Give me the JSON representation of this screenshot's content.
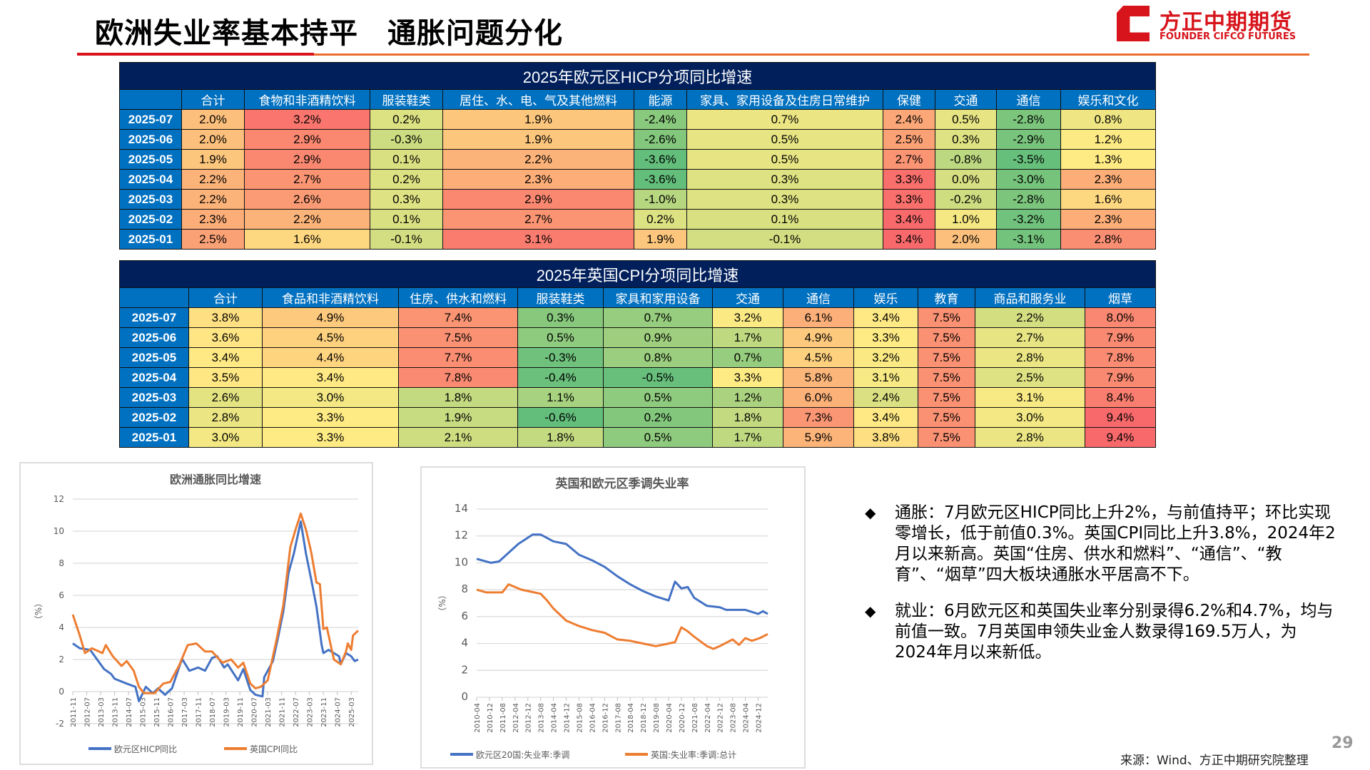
{
  "header": {
    "title": "欧洲失业率基本持平　通胀问题分化",
    "logo_cn": "方正中期期货",
    "logo_en": "FOUNDER CIFCO FUTURES",
    "colors": {
      "red": "#d7141c",
      "orange": "#ed6b2c"
    }
  },
  "hicp_table": {
    "title": "2025年欧元区HICP分项同比增速",
    "columns": [
      "",
      "合计",
      "食物和非酒精饮料",
      "服装鞋类",
      "居住、水、电、气及其他燃料",
      "能源",
      "家具、家用设备及住房日常维护",
      "保健",
      "交通",
      "通信",
      "娱乐和文化"
    ],
    "rows": [
      {
        "label": "2025-07",
        "values": [
          "2.0%",
          "3.2%",
          "0.2%",
          "1.9%",
          "-2.4%",
          "0.7%",
          "2.4%",
          "0.5%",
          "-2.8%",
          "0.8%"
        ]
      },
      {
        "label": "2025-06",
        "values": [
          "2.0%",
          "2.9%",
          "-0.3%",
          "1.9%",
          "-2.6%",
          "0.5%",
          "2.5%",
          "0.3%",
          "-2.9%",
          "1.2%"
        ]
      },
      {
        "label": "2025-05",
        "values": [
          "1.9%",
          "2.9%",
          "0.1%",
          "2.2%",
          "-3.6%",
          "0.5%",
          "2.7%",
          "-0.8%",
          "-3.5%",
          "1.3%"
        ]
      },
      {
        "label": "2025-04",
        "values": [
          "2.2%",
          "2.7%",
          "0.2%",
          "2.3%",
          "-3.6%",
          "0.3%",
          "3.3%",
          "0.0%",
          "-3.0%",
          "2.3%"
        ]
      },
      {
        "label": "2025-03",
        "values": [
          "2.2%",
          "2.6%",
          "0.3%",
          "2.9%",
          "-1.0%",
          "0.3%",
          "3.3%",
          "-0.2%",
          "-2.8%",
          "1.6%"
        ]
      },
      {
        "label": "2025-02",
        "values": [
          "2.3%",
          "2.2%",
          "0.1%",
          "2.7%",
          "0.2%",
          "0.1%",
          "3.4%",
          "1.0%",
          "-3.2%",
          "2.3%"
        ]
      },
      {
        "label": "2025-01",
        "values": [
          "2.5%",
          "1.6%",
          "-0.1%",
          "3.1%",
          "1.9%",
          "-0.1%",
          "3.4%",
          "2.0%",
          "-3.1%",
          "2.8%"
        ]
      }
    ]
  },
  "uk_table": {
    "title": "2025年英国CPI分项同比增速",
    "columns": [
      "",
      "合计",
      "食品和非酒精饮料",
      "住房、供水和燃料",
      "服装鞋类",
      "家具和家用设备",
      "交通",
      "通信",
      "娱乐",
      "教育",
      "商品和服务业",
      "烟草"
    ],
    "rows": [
      {
        "label": "2025-07",
        "values": [
          "3.8%",
          "4.9%",
          "7.4%",
          "0.3%",
          "0.7%",
          "3.2%",
          "6.1%",
          "3.4%",
          "7.5%",
          "2.2%",
          "8.0%"
        ]
      },
      {
        "label": "2025-06",
        "values": [
          "3.6%",
          "4.5%",
          "7.5%",
          "0.5%",
          "0.9%",
          "1.7%",
          "4.9%",
          "3.3%",
          "7.5%",
          "2.7%",
          "7.9%"
        ]
      },
      {
        "label": "2025-05",
        "values": [
          "3.4%",
          "4.4%",
          "7.7%",
          "-0.3%",
          "0.8%",
          "0.7%",
          "4.5%",
          "3.2%",
          "7.5%",
          "2.8%",
          "7.8%"
        ]
      },
      {
        "label": "2025-04",
        "values": [
          "3.5%",
          "3.4%",
          "7.8%",
          "-0.4%",
          "-0.5%",
          "3.3%",
          "5.8%",
          "3.1%",
          "7.5%",
          "2.5%",
          "7.9%"
        ]
      },
      {
        "label": "2025-03",
        "values": [
          "2.6%",
          "3.0%",
          "1.8%",
          "1.1%",
          "0.5%",
          "1.2%",
          "6.0%",
          "2.4%",
          "7.5%",
          "3.1%",
          "8.4%"
        ]
      },
      {
        "label": "2025-02",
        "values": [
          "2.8%",
          "3.3%",
          "1.9%",
          "-0.6%",
          "0.2%",
          "1.8%",
          "7.3%",
          "3.4%",
          "7.5%",
          "3.0%",
          "9.4%"
        ]
      },
      {
        "label": "2025-01",
        "values": [
          "3.0%",
          "3.3%",
          "2.1%",
          "1.8%",
          "0.5%",
          "1.7%",
          "5.9%",
          "3.8%",
          "7.5%",
          "2.8%",
          "9.4%"
        ]
      }
    ]
  },
  "heat_colors": {
    "low": "#63BE7B",
    "mid": "#FFEB84",
    "high": "#F8696B"
  },
  "chart_data": [
    {
      "type": "line",
      "title": "欧洲通胀同比增速",
      "ylabel": "（%）",
      "ylim": [
        -2,
        12
      ],
      "yticks": [
        -2,
        0,
        2,
        4,
        6,
        8,
        10,
        12
      ],
      "grid": true,
      "legend": "bottom",
      "xrange": [
        "2011-11",
        "2025-07"
      ],
      "xticks": [
        "2011-11",
        "2012-07",
        "2013-03",
        "2013-11",
        "2014-07",
        "2015-03",
        "2015-11",
        "2016-07",
        "2017-03",
        "2017-11",
        "2018-07",
        "2019-03",
        "2019-11",
        "2020-07",
        "2021-03",
        "2021-11",
        "2022-07",
        "2023-03",
        "2023-11",
        "2024-07",
        "2025-03"
      ],
      "series": [
        {
          "name": "欧元区HICP同比",
          "color": "#4472c4",
          "points": [
            [
              "2011-11",
              3.0
            ],
            [
              "2012-03",
              2.7
            ],
            [
              "2012-09",
              2.6
            ],
            [
              "2013-01",
              2.0
            ],
            [
              "2013-05",
              1.4
            ],
            [
              "2013-09",
              1.1
            ],
            [
              "2013-11",
              0.8
            ],
            [
              "2014-06",
              0.5
            ],
            [
              "2014-11",
              0.3
            ],
            [
              "2015-01",
              -0.6
            ],
            [
              "2015-05",
              0.3
            ],
            [
              "2015-09",
              -0.1
            ],
            [
              "2015-12",
              0.2
            ],
            [
              "2016-04",
              -0.2
            ],
            [
              "2016-08",
              0.2
            ],
            [
              "2017-01",
              1.8
            ],
            [
              "2017-02",
              2.0
            ],
            [
              "2017-06",
              1.3
            ],
            [
              "2017-11",
              1.5
            ],
            [
              "2018-03",
              1.3
            ],
            [
              "2018-07",
              2.1
            ],
            [
              "2018-10",
              2.2
            ],
            [
              "2019-02",
              1.5
            ],
            [
              "2019-04",
              1.7
            ],
            [
              "2019-10",
              0.7
            ],
            [
              "2020-01",
              1.4
            ],
            [
              "2020-05",
              0.1
            ],
            [
              "2020-08",
              -0.2
            ],
            [
              "2020-12",
              -0.3
            ],
            [
              "2021-01",
              0.9
            ],
            [
              "2021-06",
              1.9
            ],
            [
              "2021-09",
              3.4
            ],
            [
              "2021-12",
              5.0
            ],
            [
              "2022-03",
              7.4
            ],
            [
              "2022-06",
              8.6
            ],
            [
              "2022-10",
              10.6
            ],
            [
              "2023-01",
              8.6
            ],
            [
              "2023-04",
              7.0
            ],
            [
              "2023-07",
              5.3
            ],
            [
              "2023-10",
              2.9
            ],
            [
              "2023-11",
              2.4
            ],
            [
              "2024-02",
              2.6
            ],
            [
              "2024-08",
              2.2
            ],
            [
              "2024-09",
              1.7
            ],
            [
              "2024-12",
              2.4
            ],
            [
              "2025-03",
              2.2
            ],
            [
              "2025-05",
              1.9
            ],
            [
              "2025-07",
              2.0
            ]
          ]
        },
        {
          "name": "英国CPI同比",
          "color": "#ed7d31",
          "points": [
            [
              "2011-11",
              4.8
            ],
            [
              "2012-03",
              3.5
            ],
            [
              "2012-06",
              2.4
            ],
            [
              "2012-10",
              2.7
            ],
            [
              "2013-04",
              2.4
            ],
            [
              "2013-06",
              2.9
            ],
            [
              "2013-10",
              2.2
            ],
            [
              "2014-03",
              1.6
            ],
            [
              "2014-06",
              1.9
            ],
            [
              "2014-10",
              1.3
            ],
            [
              "2015-01",
              0.3
            ],
            [
              "2015-04",
              -0.1
            ],
            [
              "2015-10",
              -0.1
            ],
            [
              "2016-03",
              0.5
            ],
            [
              "2016-07",
              0.6
            ],
            [
              "2016-12",
              1.6
            ],
            [
              "2017-05",
              2.9
            ],
            [
              "2017-10",
              3.0
            ],
            [
              "2018-03",
              2.5
            ],
            [
              "2018-07",
              2.5
            ],
            [
              "2019-01",
              1.8
            ],
            [
              "2019-06",
              2.0
            ],
            [
              "2019-10",
              1.5
            ],
            [
              "2020-01",
              1.8
            ],
            [
              "2020-05",
              0.5
            ],
            [
              "2020-08",
              0.2
            ],
            [
              "2020-11",
              0.3
            ],
            [
              "2021-03",
              0.7
            ],
            [
              "2021-08",
              3.2
            ],
            [
              "2021-12",
              5.4
            ],
            [
              "2022-04",
              9.0
            ],
            [
              "2022-07",
              10.1
            ],
            [
              "2022-10",
              11.1
            ],
            [
              "2023-01",
              10.1
            ],
            [
              "2023-04",
              8.7
            ],
            [
              "2023-07",
              6.8
            ],
            [
              "2023-09",
              6.7
            ],
            [
              "2023-11",
              3.9
            ],
            [
              "2024-01",
              4.0
            ],
            [
              "2024-05",
              2.0
            ],
            [
              "2024-09",
              1.7
            ],
            [
              "2024-12",
              2.5
            ],
            [
              "2025-01",
              3.0
            ],
            [
              "2025-03",
              2.6
            ],
            [
              "2025-04",
              3.5
            ],
            [
              "2025-07",
              3.8
            ]
          ]
        }
      ]
    },
    {
      "type": "line",
      "title": "英国和欧元区季调失业率",
      "ylabel": "（%）",
      "ylim": [
        0,
        14
      ],
      "yticks": [
        0,
        2,
        4,
        6,
        8,
        10,
        12,
        14
      ],
      "grid": true,
      "legend": "bottom",
      "xrange": [
        "2010-04",
        "2025-06"
      ],
      "xticks": [
        "2010-04",
        "2010-12",
        "2011-08",
        "2012-04",
        "2012-12",
        "2013-08",
        "2014-04",
        "2014-12",
        "2015-08",
        "2016-04",
        "2016-12",
        "2017-08",
        "2018-04",
        "2018-12",
        "2019-08",
        "2020-04",
        "2020-12",
        "2021-08",
        "2022-04",
        "2022-12",
        "2023-08",
        "2024-04",
        "2024-12"
      ],
      "series": [
        {
          "name": "欧元区20国:失业率:季调",
          "color": "#4472c4",
          "points": [
            [
              "2010-04",
              10.3
            ],
            [
              "2011-01",
              10.0
            ],
            [
              "2011-06",
              10.1
            ],
            [
              "2012-06",
              11.4
            ],
            [
              "2013-03",
              12.1
            ],
            [
              "2013-08",
              12.1
            ],
            [
              "2014-04",
              11.6
            ],
            [
              "2014-12",
              11.4
            ],
            [
              "2015-08",
              10.6
            ],
            [
              "2016-04",
              10.2
            ],
            [
              "2016-12",
              9.7
            ],
            [
              "2017-08",
              9.0
            ],
            [
              "2018-04",
              8.4
            ],
            [
              "2018-12",
              7.9
            ],
            [
              "2019-08",
              7.5
            ],
            [
              "2020-04",
              7.2
            ],
            [
              "2020-08",
              8.6
            ],
            [
              "2020-12",
              8.1
            ],
            [
              "2021-04",
              8.2
            ],
            [
              "2021-08",
              7.4
            ],
            [
              "2022-04",
              6.8
            ],
            [
              "2022-12",
              6.7
            ],
            [
              "2023-04",
              6.5
            ],
            [
              "2024-04",
              6.5
            ],
            [
              "2024-12",
              6.2
            ],
            [
              "2025-03",
              6.4
            ],
            [
              "2025-06",
              6.2
            ]
          ]
        },
        {
          "name": "英国:失业率:季调:总计",
          "color": "#ed7d31",
          "points": [
            [
              "2010-04",
              8.0
            ],
            [
              "2010-10",
              7.8
            ],
            [
              "2011-08",
              7.8
            ],
            [
              "2011-12",
              8.4
            ],
            [
              "2012-08",
              8.0
            ],
            [
              "2013-04",
              7.8
            ],
            [
              "2013-08",
              7.7
            ],
            [
              "2013-12",
              7.2
            ],
            [
              "2014-04",
              6.6
            ],
            [
              "2014-12",
              5.7
            ],
            [
              "2015-08",
              5.3
            ],
            [
              "2016-04",
              5.0
            ],
            [
              "2016-12",
              4.8
            ],
            [
              "2017-08",
              4.3
            ],
            [
              "2018-04",
              4.2
            ],
            [
              "2018-12",
              4.0
            ],
            [
              "2019-08",
              3.8
            ],
            [
              "2020-04",
              4.0
            ],
            [
              "2020-08",
              4.1
            ],
            [
              "2020-12",
              5.2
            ],
            [
              "2021-04",
              4.9
            ],
            [
              "2021-08",
              4.5
            ],
            [
              "2022-04",
              3.8
            ],
            [
              "2022-08",
              3.6
            ],
            [
              "2022-12",
              3.8
            ],
            [
              "2023-08",
              4.3
            ],
            [
              "2023-12",
              3.9
            ],
            [
              "2024-04",
              4.4
            ],
            [
              "2024-08",
              4.2
            ],
            [
              "2025-01",
              4.4
            ],
            [
              "2025-06",
              4.7
            ]
          ]
        }
      ]
    }
  ],
  "commentary": {
    "bullet_icon": "◆",
    "items": [
      "通胀：7月欧元区HICP同比上升2%，与前值持平；环比实现零增长，低于前值0.3%。英国CPI同比上升3.8%，2024年2月以来新高。英国“住房、供水和燃料”、“通信”、“教育”、“烟草”四大板块通胀水平居高不下。",
      "就业：6月欧元区和英国失业率分别录得6.2%和4.7%，均与前值一致。7月英国申领失业金人数录得169.5万人，为2024年月以来新低。"
    ]
  },
  "footer": {
    "page": "29",
    "source": "来源：Wind、方正中期研究院整理"
  }
}
